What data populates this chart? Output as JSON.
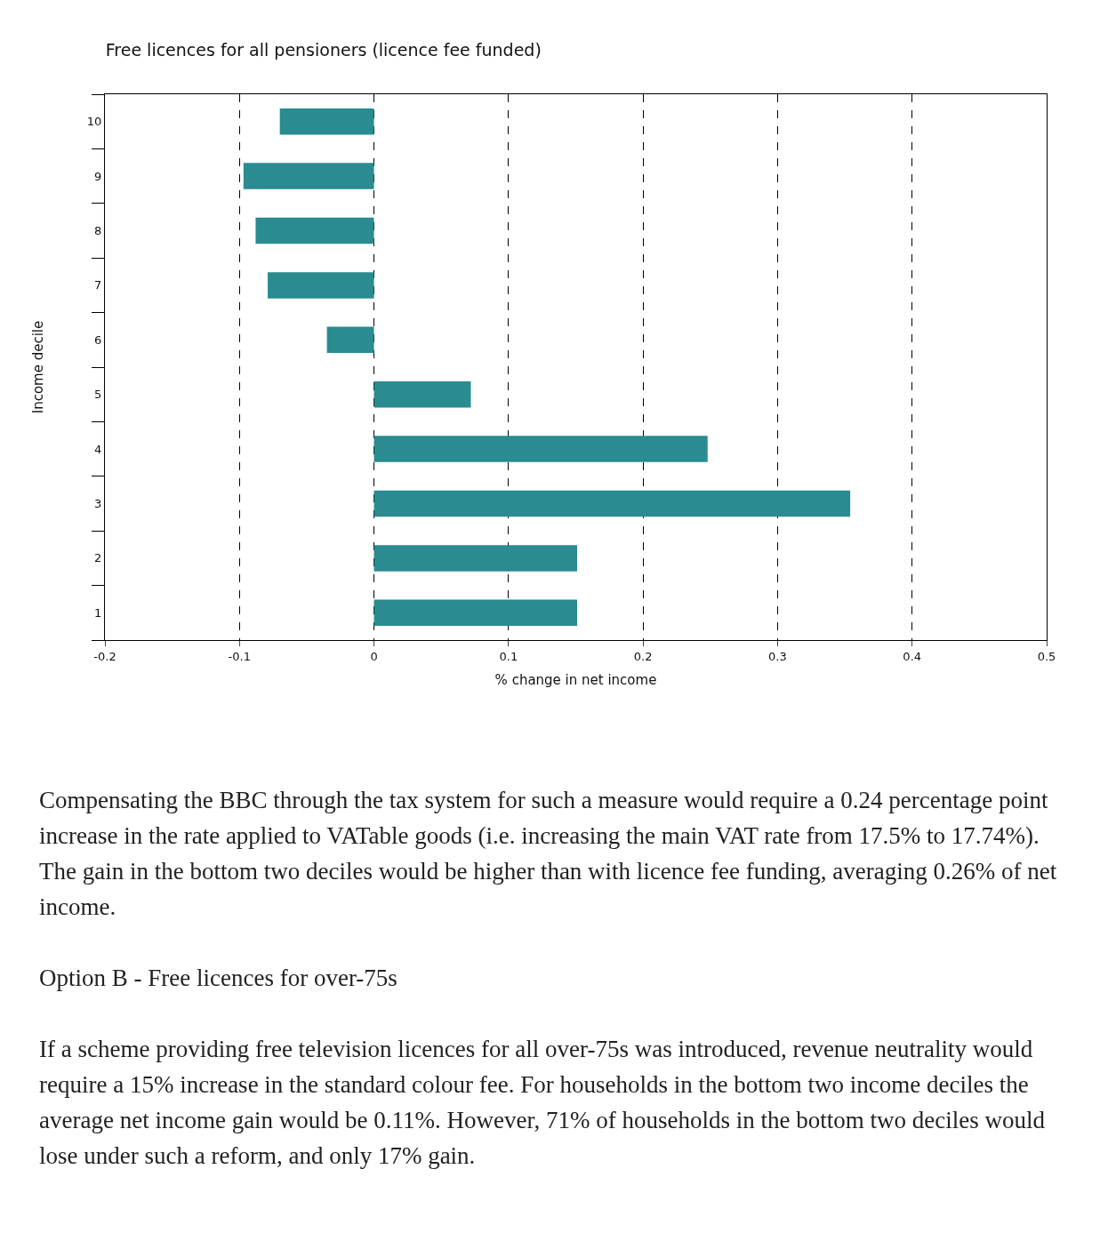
{
  "chart_data": {
    "type": "bar",
    "orientation": "horizontal",
    "title": "Free licences for all pensioners (licence fee funded)",
    "xlabel": "% change in net income",
    "ylabel": "Income decile",
    "categories": [
      "10",
      "9",
      "8",
      "7",
      "6",
      "5",
      "4",
      "3",
      "2",
      "1"
    ],
    "series": [
      {
        "color": "#2a8b91",
        "values": [
          -0.07,
          -0.097,
          -0.088,
          -0.079,
          -0.035,
          0.072,
          0.248,
          0.354,
          0.151,
          0.151
        ]
      }
    ],
    "xlim": [
      -0.2,
      0.5
    ],
    "xticks": [
      -0.2,
      -0.1,
      0,
      0.1,
      0.2,
      0.3,
      0.4,
      0.5
    ],
    "grid": "x",
    "annotations": [
      "Compensating the BBC through the tax system for such a measure would require a 0.24 percentage point increase in the rate applied to VATable goods (i.e. increasing the main VAT rate from 17.5% to 17.74%).  The gain in the bottom two deciles would be higher than with licence fee funding, averaging 0.26% of net income.",
      "Option B - Free licences for over-75s",
      "If a scheme providing free television licences for all over-75s was introduced, revenue neutrality would require a 15% increase in the standard colour fee.  For households in the bottom two income deciles the average net income gain would be 0.11%.  However, 71% of households in the bottom two deciles would lose under such a reform, and only 17% gain."
    ]
  }
}
